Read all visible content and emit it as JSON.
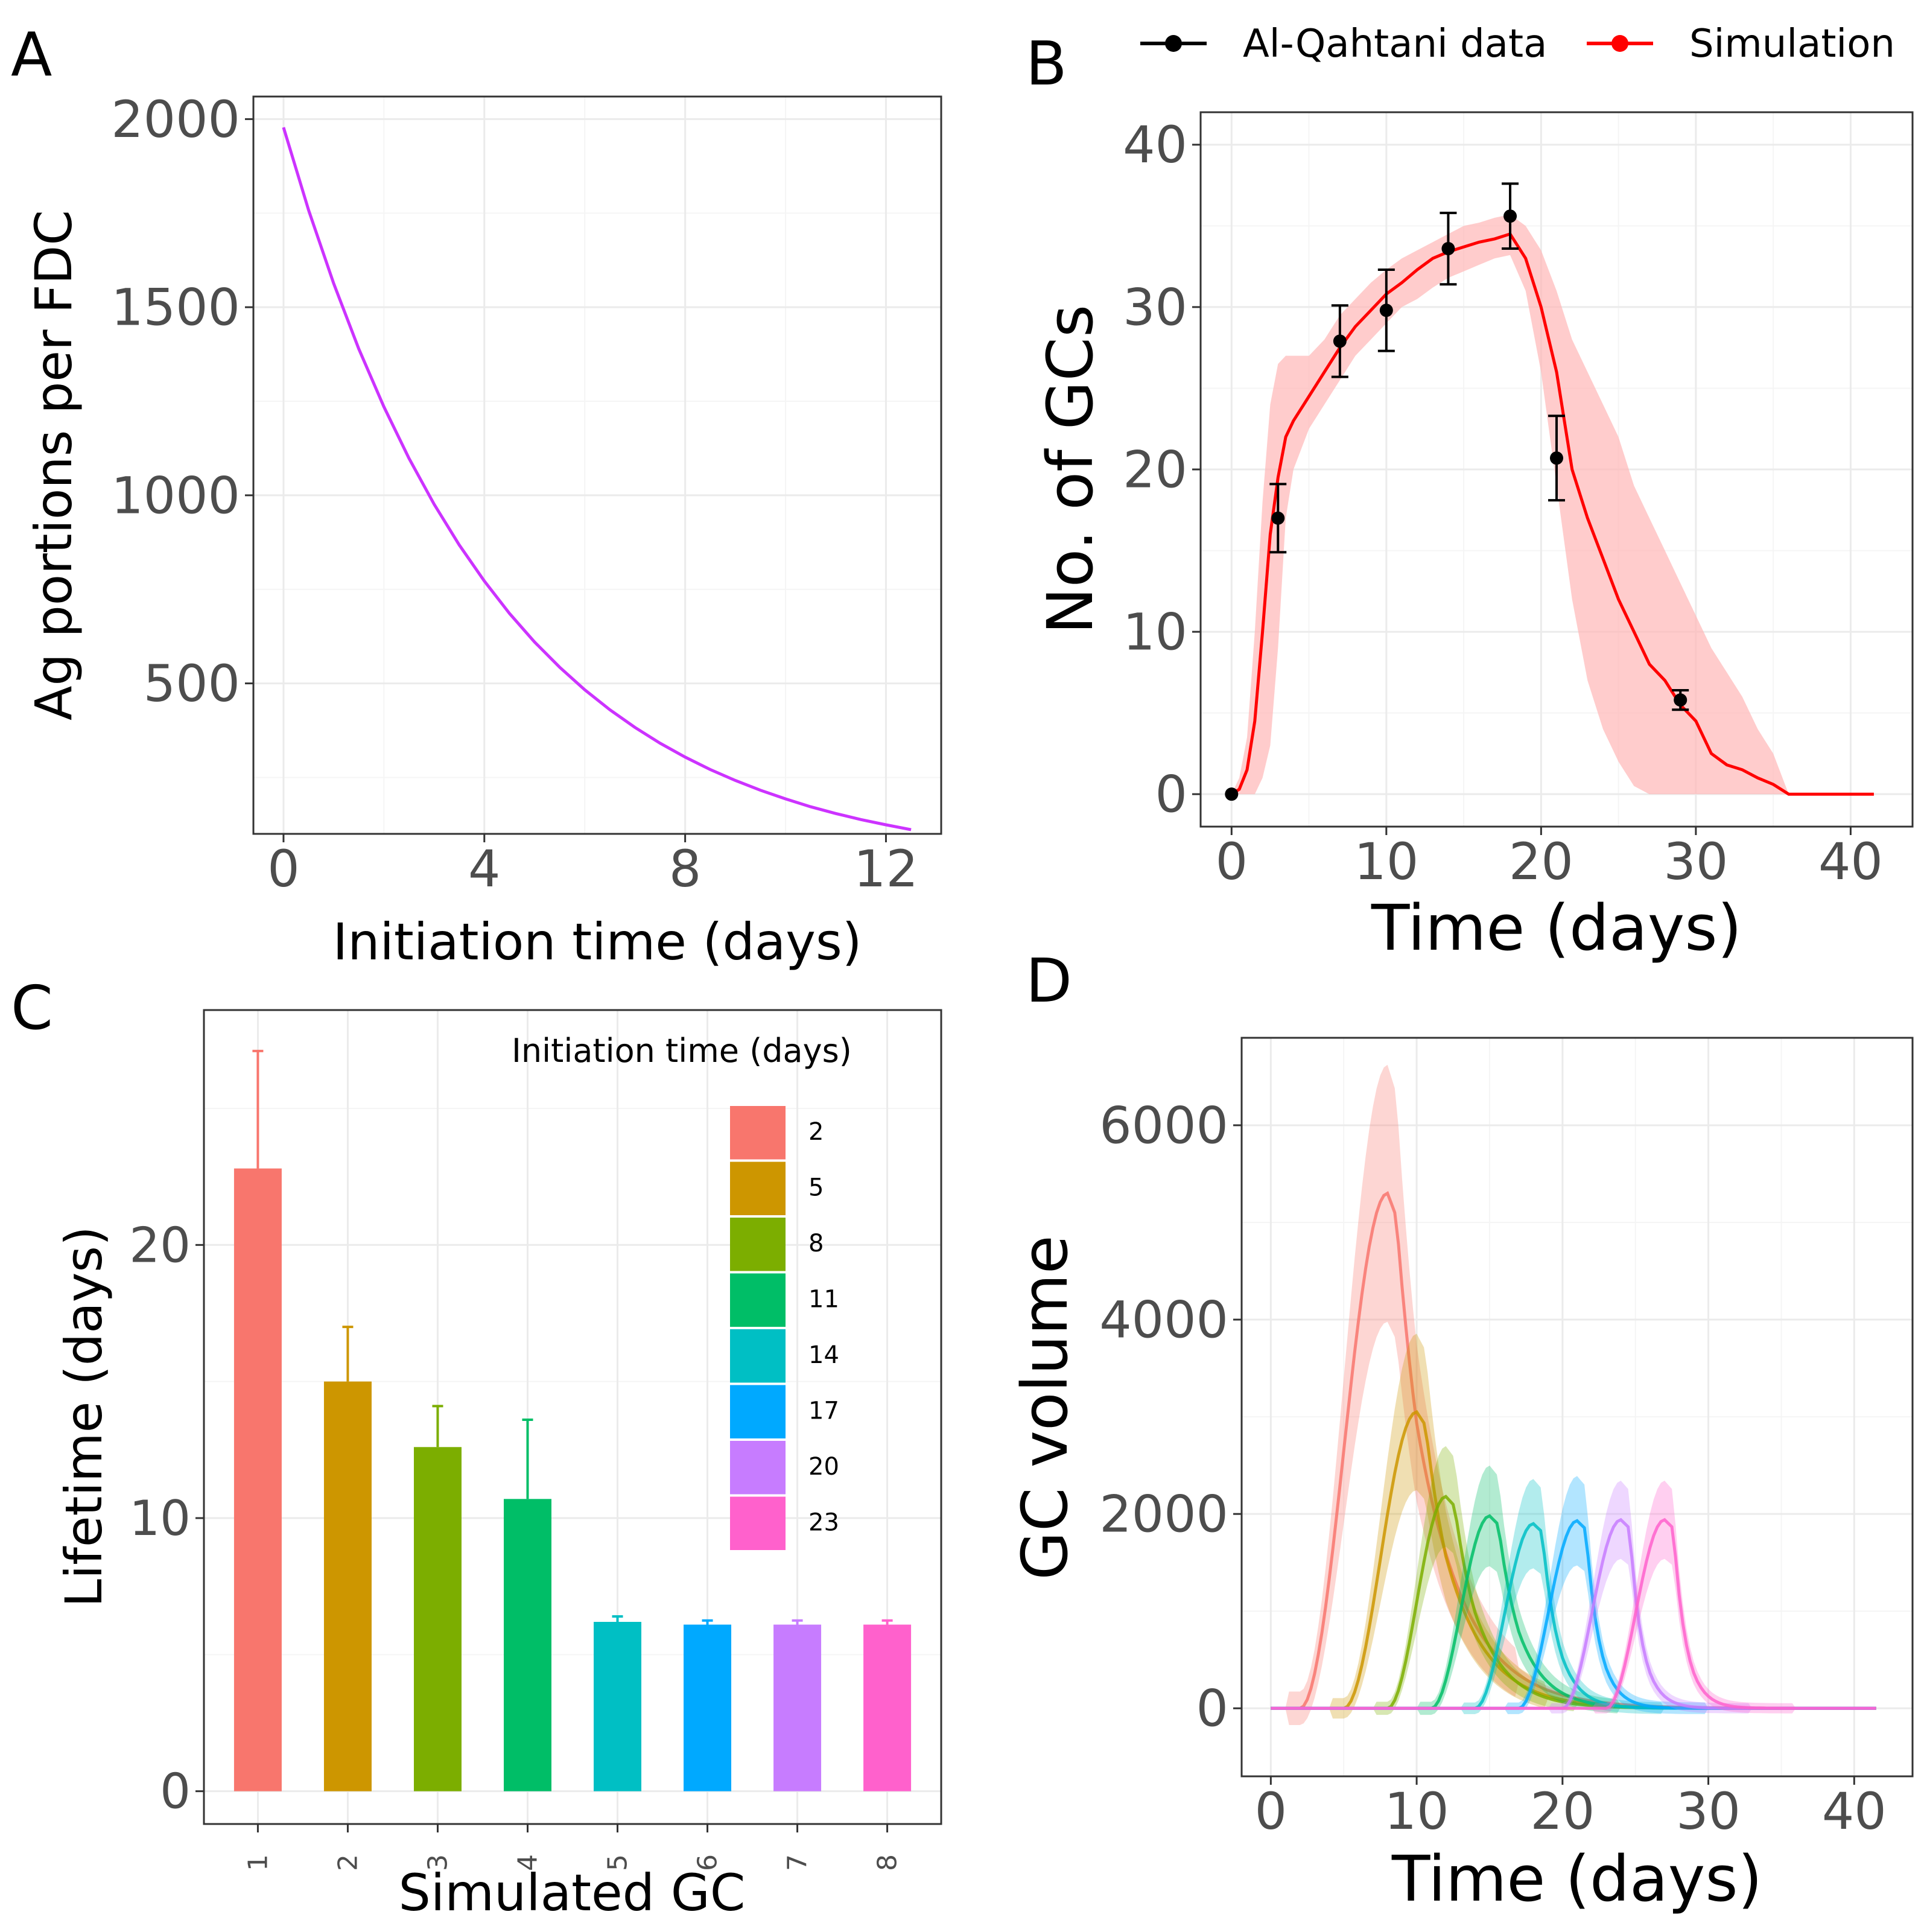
{
  "panels": {
    "A": {
      "letter": "A",
      "chart_data": {
        "type": "line",
        "title": "",
        "xlabel": "Initiation time (days)",
        "ylabel": "Ag portions per FDC",
        "xlim": [
          -0.6,
          13.1
        ],
        "ylim": [
          100,
          2060
        ],
        "xticks": [
          0,
          4,
          8,
          12
        ],
        "yticks": [
          500,
          1000,
          1500,
          2000
        ],
        "series": [
          {
            "name": "Ag portions per FDC",
            "color": "#cc33ff",
            "x": [
              0,
              0.5,
              1,
              1.5,
              2,
              2.5,
              3,
              3.5,
              4,
              4.5,
              5,
              5.5,
              6,
              6.5,
              7,
              7.5,
              8,
              8.5,
              9,
              9.5,
              10,
              10.5,
              11,
              11.5,
              12,
              12.5
            ],
            "y": [
              1978,
              1758,
              1563,
              1389,
              1235,
              1098,
              976,
              868,
              772,
              686,
              610,
              543,
              483,
              430,
              383,
              341,
              304,
              271,
              242,
              216,
              193,
              172,
              154,
              138,
              124,
              111
            ]
          }
        ]
      }
    },
    "B": {
      "letter": "B",
      "chart_data": {
        "type": "line",
        "title": "",
        "xlabel": "Time (days)",
        "ylabel": "No. of GCs",
        "xlim": [
          -2,
          44
        ],
        "ylim": [
          -2,
          42
        ],
        "xticks": [
          0,
          10,
          20,
          30,
          40
        ],
        "yticks": [
          0,
          10,
          20,
          30,
          40
        ],
        "legend": [
          "Al-Qahtani data",
          "Simulation"
        ],
        "legend_position": "top",
        "series": [
          {
            "name": "Al-Qahtani data",
            "color": "#000000",
            "kind": "points-with-errorbars",
            "x": [
              0,
              3,
              7,
              10,
              14,
              18,
              21,
              29
            ],
            "y": [
              0,
              17,
              27.9,
              29.8,
              33.6,
              35.6,
              20.7,
              5.8
            ],
            "err": [
              0,
              2.1,
              2.2,
              2.5,
              2.2,
              2.0,
              2.6,
              0.6
            ]
          },
          {
            "name": "Simulation",
            "color": "#ff0000",
            "band_color": "#ffb6b6",
            "x": [
              0,
              0.5,
              1,
              1.5,
              2,
              2.5,
              3,
              3.5,
              4,
              5,
              6,
              7,
              8,
              9,
              10,
              11,
              12,
              13,
              14,
              15,
              16,
              17,
              18,
              19,
              20,
              21,
              22,
              23,
              24,
              25,
              26,
              27,
              28,
              29,
              30,
              31,
              32,
              33,
              34,
              35,
              36,
              38,
              40,
              41.5
            ],
            "y": [
              0,
              0.3,
              1.5,
              4.5,
              10,
              16,
              19.5,
              22,
              23,
              24.5,
              26,
              27.5,
              28.8,
              29.8,
              30.8,
              31.5,
              32.3,
              33,
              33.4,
              33.7,
              34,
              34.2,
              34.5,
              33,
              30,
              26,
              20,
              17,
              14.5,
              12,
              10,
              8,
              7,
              5.5,
              4.5,
              2.5,
              1.8,
              1.5,
              1.0,
              0.6,
              0,
              0,
              0,
              0
            ],
            "lower": [
              0,
              0,
              0,
              0,
              1,
              3,
              9,
              17,
              20,
              22.5,
              24,
              25.5,
              27,
              28,
              29,
              30,
              30.5,
              31.2,
              31.8,
              32.2,
              32.6,
              33,
              33.2,
              31,
              26,
              19,
              12,
              7,
              4,
              2,
              0.5,
              0,
              0,
              0,
              0,
              0,
              0,
              0,
              0,
              0,
              0,
              0,
              0,
              0
            ],
            "upper": [
              0,
              1,
              3.5,
              10,
              18,
              24,
              26.5,
              27,
              27,
              27,
              28,
              29.5,
              30.5,
              31.5,
              32.3,
              33,
              33.5,
              34,
              34.5,
              35,
              35.2,
              35.5,
              35.7,
              35,
              33.5,
              31,
              28,
              26,
              24,
              22,
              19,
              17,
              15,
              13,
              11,
              9,
              7.5,
              6,
              4,
              2.5,
              0,
              0,
              0,
              0
            ]
          }
        ]
      }
    },
    "C": {
      "letter": "C",
      "chart_data": {
        "type": "bar",
        "title": "",
        "xlabel": "Simulated GC",
        "ylabel": "Lifetime (days)",
        "ylim": [
          -1.2,
          28.6
        ],
        "yticks": [
          0,
          10,
          20
        ],
        "categories": [
          "1",
          "2",
          "3",
          "4",
          "5",
          "6",
          "7",
          "8"
        ],
        "values": [
          22.8,
          15.0,
          12.6,
          10.7,
          6.2,
          6.1,
          6.1,
          6.1
        ],
        "errors": [
          4.3,
          2.0,
          1.5,
          2.9,
          0.2,
          0.15,
          0.15,
          0.15
        ],
        "colors": [
          "#f8766d",
          "#cd9600",
          "#7cae00",
          "#00be67",
          "#00bfc4",
          "#00a9ff",
          "#c77cff",
          "#ff61cc"
        ],
        "legend_title": "Initiation time (days)",
        "legend_labels": [
          "2",
          "5",
          "8",
          "11",
          "14",
          "17",
          "20",
          "23"
        ],
        "legend_position": "top-right"
      }
    },
    "D": {
      "letter": "D",
      "chart_data": {
        "type": "area",
        "title": "",
        "xlabel": "Time (days)",
        "ylabel": "GC volume",
        "xlim": [
          -2,
          44
        ],
        "ylim": [
          -700,
          6900
        ],
        "xticks": [
          0,
          10,
          20,
          30,
          40
        ],
        "yticks": [
          0,
          2000,
          4000,
          6000
        ],
        "series": [
          {
            "name": "2",
            "color": "#f8766d",
            "start": 2,
            "peak_day": 8,
            "peak": 5300,
            "band": 1150,
            "tail": 0.17,
            "end": 41.5
          },
          {
            "name": "5",
            "color": "#cd9600",
            "start": 5,
            "peak_day": 10,
            "peak": 3050,
            "band": 700,
            "tail": 0.2,
            "end": 41.5
          },
          {
            "name": "8",
            "color": "#7cae00",
            "start": 8,
            "peak_day": 12,
            "peak": 2180,
            "band": 450,
            "tail": 0.25,
            "end": 41.5
          },
          {
            "name": "11",
            "color": "#00be67",
            "start": 11,
            "peak_day": 15,
            "peak": 1980,
            "band": 450,
            "tail": 0.3,
            "end": 41.5
          },
          {
            "name": "14",
            "color": "#00bfc4",
            "start": 14,
            "peak_day": 18,
            "peak": 1900,
            "band": 400,
            "tail": 0.45,
            "end": 41.5
          },
          {
            "name": "17",
            "color": "#00a9ff",
            "start": 17,
            "peak_day": 21,
            "peak": 1930,
            "band": 400,
            "tail": 0.55,
            "end": 41.5
          },
          {
            "name": "20",
            "color": "#c77cff",
            "start": 20,
            "peak_day": 24,
            "peak": 1940,
            "band": 350,
            "tail": 0.6,
            "end": 41.5
          },
          {
            "name": "23",
            "color": "#ff61cc",
            "start": 23,
            "peak_day": 27,
            "peak": 1940,
            "band": 350,
            "tail": 0.6,
            "end": 41.5
          }
        ]
      }
    }
  }
}
